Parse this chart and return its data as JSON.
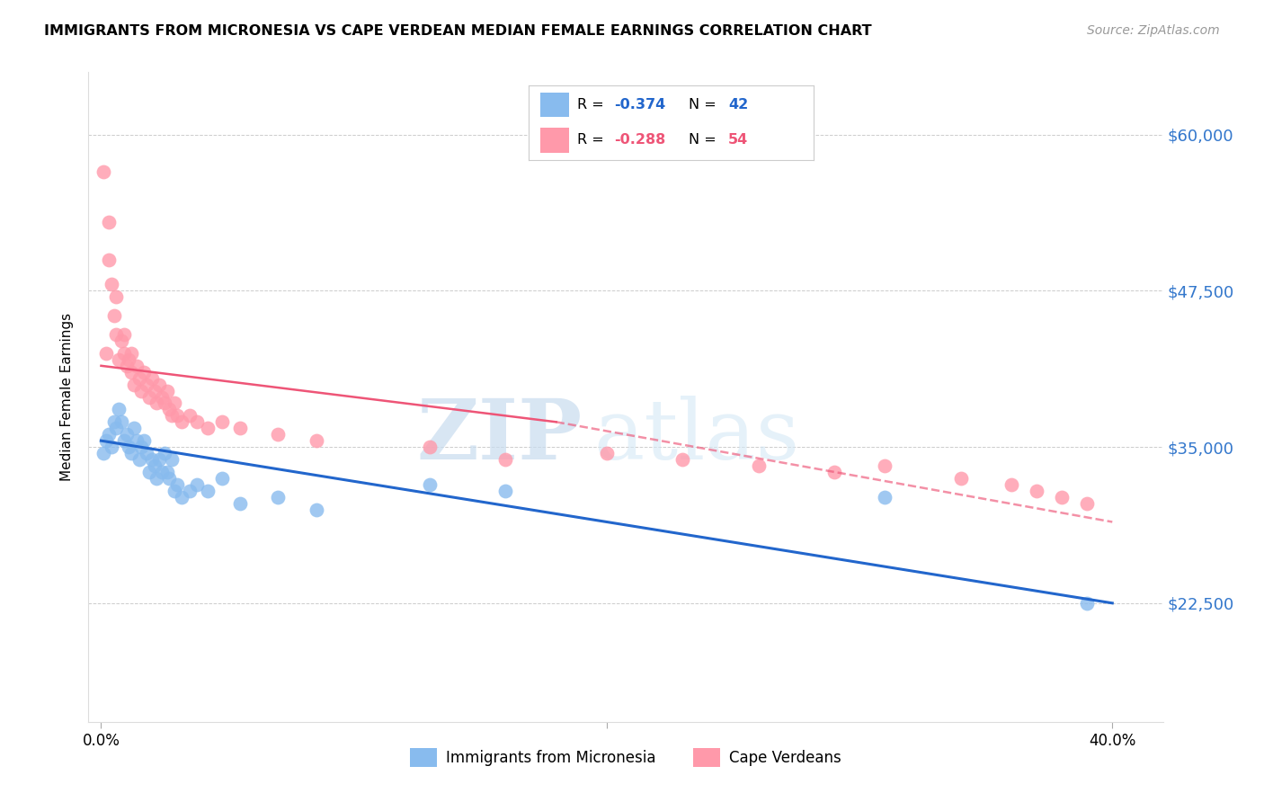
{
  "title": "IMMIGRANTS FROM MICRONESIA VS CAPE VERDEAN MEDIAN FEMALE EARNINGS CORRELATION CHART",
  "source": "Source: ZipAtlas.com",
  "ylabel": "Median Female Earnings",
  "ylabel_ticks": [
    "$22,500",
    "$35,000",
    "$47,500",
    "$60,000"
  ],
  "ylabel_vals": [
    22500,
    35000,
    47500,
    60000
  ],
  "xlabel_ticks": [
    "0.0%",
    "40.0%"
  ],
  "xlabel_vals": [
    0.0,
    0.4
  ],
  "ylim": [
    13000,
    65000
  ],
  "xlim": [
    -0.005,
    0.42
  ],
  "legend_bottom_label1": "Immigrants from Micronesia",
  "legend_bottom_label2": "Cape Verdeans",
  "blue_color": "#88BBEE",
  "pink_color": "#FF99AA",
  "blue_line_color": "#2266CC",
  "pink_line_color": "#EE5577",
  "watermark_zip": "ZIP",
  "watermark_atlas": "atlas",
  "blue_scatter_x": [
    0.001,
    0.002,
    0.003,
    0.004,
    0.005,
    0.006,
    0.007,
    0.008,
    0.009,
    0.01,
    0.011,
    0.012,
    0.013,
    0.014,
    0.015,
    0.016,
    0.017,
    0.018,
    0.019,
    0.02,
    0.021,
    0.022,
    0.023,
    0.024,
    0.025,
    0.026,
    0.027,
    0.028,
    0.029,
    0.03,
    0.032,
    0.035,
    0.038,
    0.042,
    0.048,
    0.055,
    0.07,
    0.085,
    0.13,
    0.16,
    0.31,
    0.39
  ],
  "blue_scatter_y": [
    34500,
    35500,
    36000,
    35000,
    37000,
    36500,
    38000,
    37000,
    35500,
    36000,
    35000,
    34500,
    36500,
    35500,
    34000,
    35000,
    35500,
    34500,
    33000,
    34000,
    33500,
    32500,
    34000,
    33000,
    34500,
    33000,
    32500,
    34000,
    31500,
    32000,
    31000,
    31500,
    32000,
    31500,
    32500,
    30500,
    31000,
    30000,
    32000,
    31500,
    31000,
    22500
  ],
  "pink_scatter_x": [
    0.001,
    0.002,
    0.003,
    0.004,
    0.005,
    0.006,
    0.007,
    0.008,
    0.009,
    0.01,
    0.011,
    0.012,
    0.013,
    0.014,
    0.015,
    0.016,
    0.017,
    0.018,
    0.019,
    0.02,
    0.021,
    0.022,
    0.023,
    0.024,
    0.025,
    0.026,
    0.027,
    0.028,
    0.029,
    0.03,
    0.032,
    0.035,
    0.038,
    0.042,
    0.048,
    0.055,
    0.07,
    0.085,
    0.13,
    0.16,
    0.2,
    0.23,
    0.26,
    0.29,
    0.31,
    0.34,
    0.36,
    0.37,
    0.38,
    0.39,
    0.003,
    0.006,
    0.009,
    0.012
  ],
  "pink_scatter_y": [
    57000,
    42500,
    50000,
    48000,
    45500,
    44000,
    42000,
    43500,
    42500,
    41500,
    42000,
    41000,
    40000,
    41500,
    40500,
    39500,
    41000,
    40000,
    39000,
    40500,
    39500,
    38500,
    40000,
    39000,
    38500,
    39500,
    38000,
    37500,
    38500,
    37500,
    37000,
    37500,
    37000,
    36500,
    37000,
    36500,
    36000,
    35500,
    35000,
    34000,
    34500,
    34000,
    33500,
    33000,
    33500,
    32500,
    32000,
    31500,
    31000,
    30500,
    53000,
    47000,
    44000,
    42500
  ]
}
